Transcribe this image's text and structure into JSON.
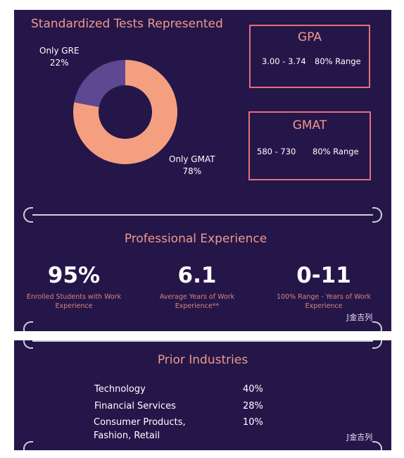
{
  "tests": {
    "title": "Standardized Tests Represented",
    "chart_data": {
      "type": "pie",
      "title": "Standardized Tests Represented",
      "slices": [
        {
          "label": "Only GMAT",
          "value": 78,
          "value_text": "78%",
          "color": "#f4a080"
        },
        {
          "label": "Only GRE",
          "value": 22,
          "value_text": "22%",
          "color": "#5e4891"
        }
      ]
    }
  },
  "gpa": {
    "title": "GPA",
    "range": "3.00 - 3.74",
    "note": "80% Range"
  },
  "gmat": {
    "title": "GMAT",
    "range": "580 - 730",
    "note": "80% Range"
  },
  "experience": {
    "title": "Professional Experience",
    "stats": [
      {
        "value": "95%",
        "caption": "Enrolled Students with Work Experience"
      },
      {
        "value": "6.1",
        "caption": "Average Years of Work Experience**"
      },
      {
        "value": "0-11",
        "caption": "100% Range - Years of Work Experience"
      }
    ]
  },
  "industries": {
    "title": "Prior Industries",
    "items": [
      {
        "name": "Technology",
        "pct": "40%"
      },
      {
        "name": "Financial Services",
        "pct": "28%"
      },
      {
        "name": "Consumer Products, Fashion, Retail",
        "pct": "10%"
      }
    ]
  },
  "watermark": "金吉列",
  "colors": {
    "panel": "#25164a",
    "accent": "#f0998a",
    "border": "#e2707a"
  }
}
